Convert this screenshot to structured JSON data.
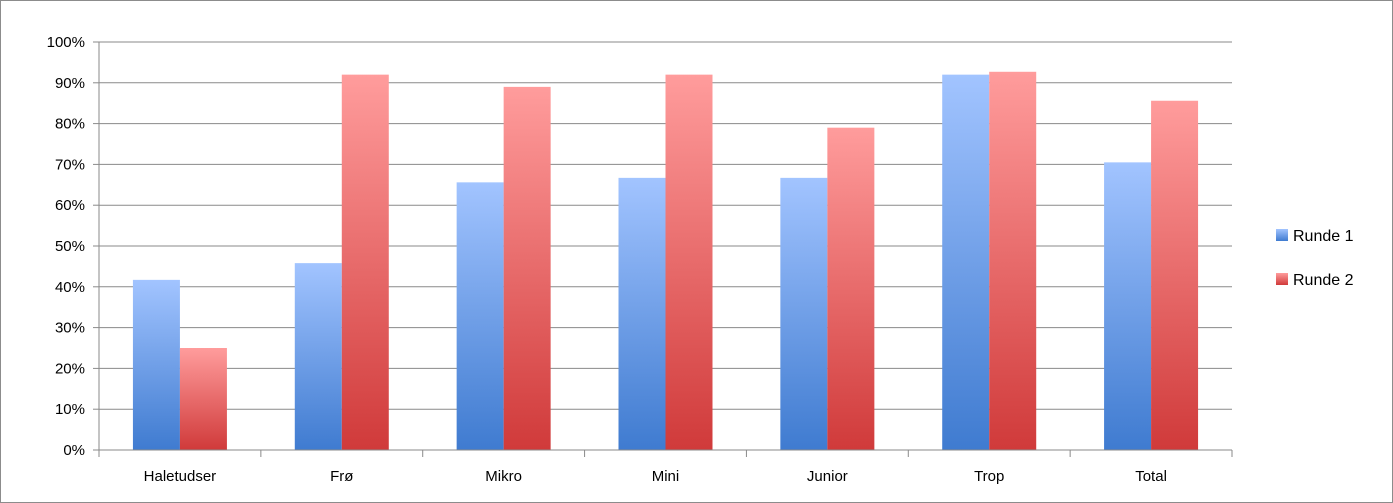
{
  "chart_data": {
    "type": "bar",
    "title": "",
    "xlabel": "",
    "ylabel": "",
    "categories": [
      "Haletudser",
      "Frø",
      "Mikro",
      "Mini",
      "Junior",
      "Trop",
      "Total"
    ],
    "series": [
      {
        "name": "Runde 1",
        "values": [
          41.7,
          45.8,
          65.6,
          66.7,
          66.7,
          92.0,
          70.5
        ],
        "color": "#5b8fd9"
      },
      {
        "name": "Runde 2",
        "values": [
          25.0,
          92.0,
          89.0,
          92.0,
          79.0,
          92.7,
          85.6
        ],
        "color": "#e05a5a"
      }
    ],
    "ylim": [
      0,
      100
    ],
    "yticks": [
      "0%",
      "10%",
      "20%",
      "30%",
      "40%",
      "50%",
      "60%",
      "70%",
      "80%",
      "90%",
      "100%"
    ],
    "grid": true,
    "legend": "right"
  }
}
